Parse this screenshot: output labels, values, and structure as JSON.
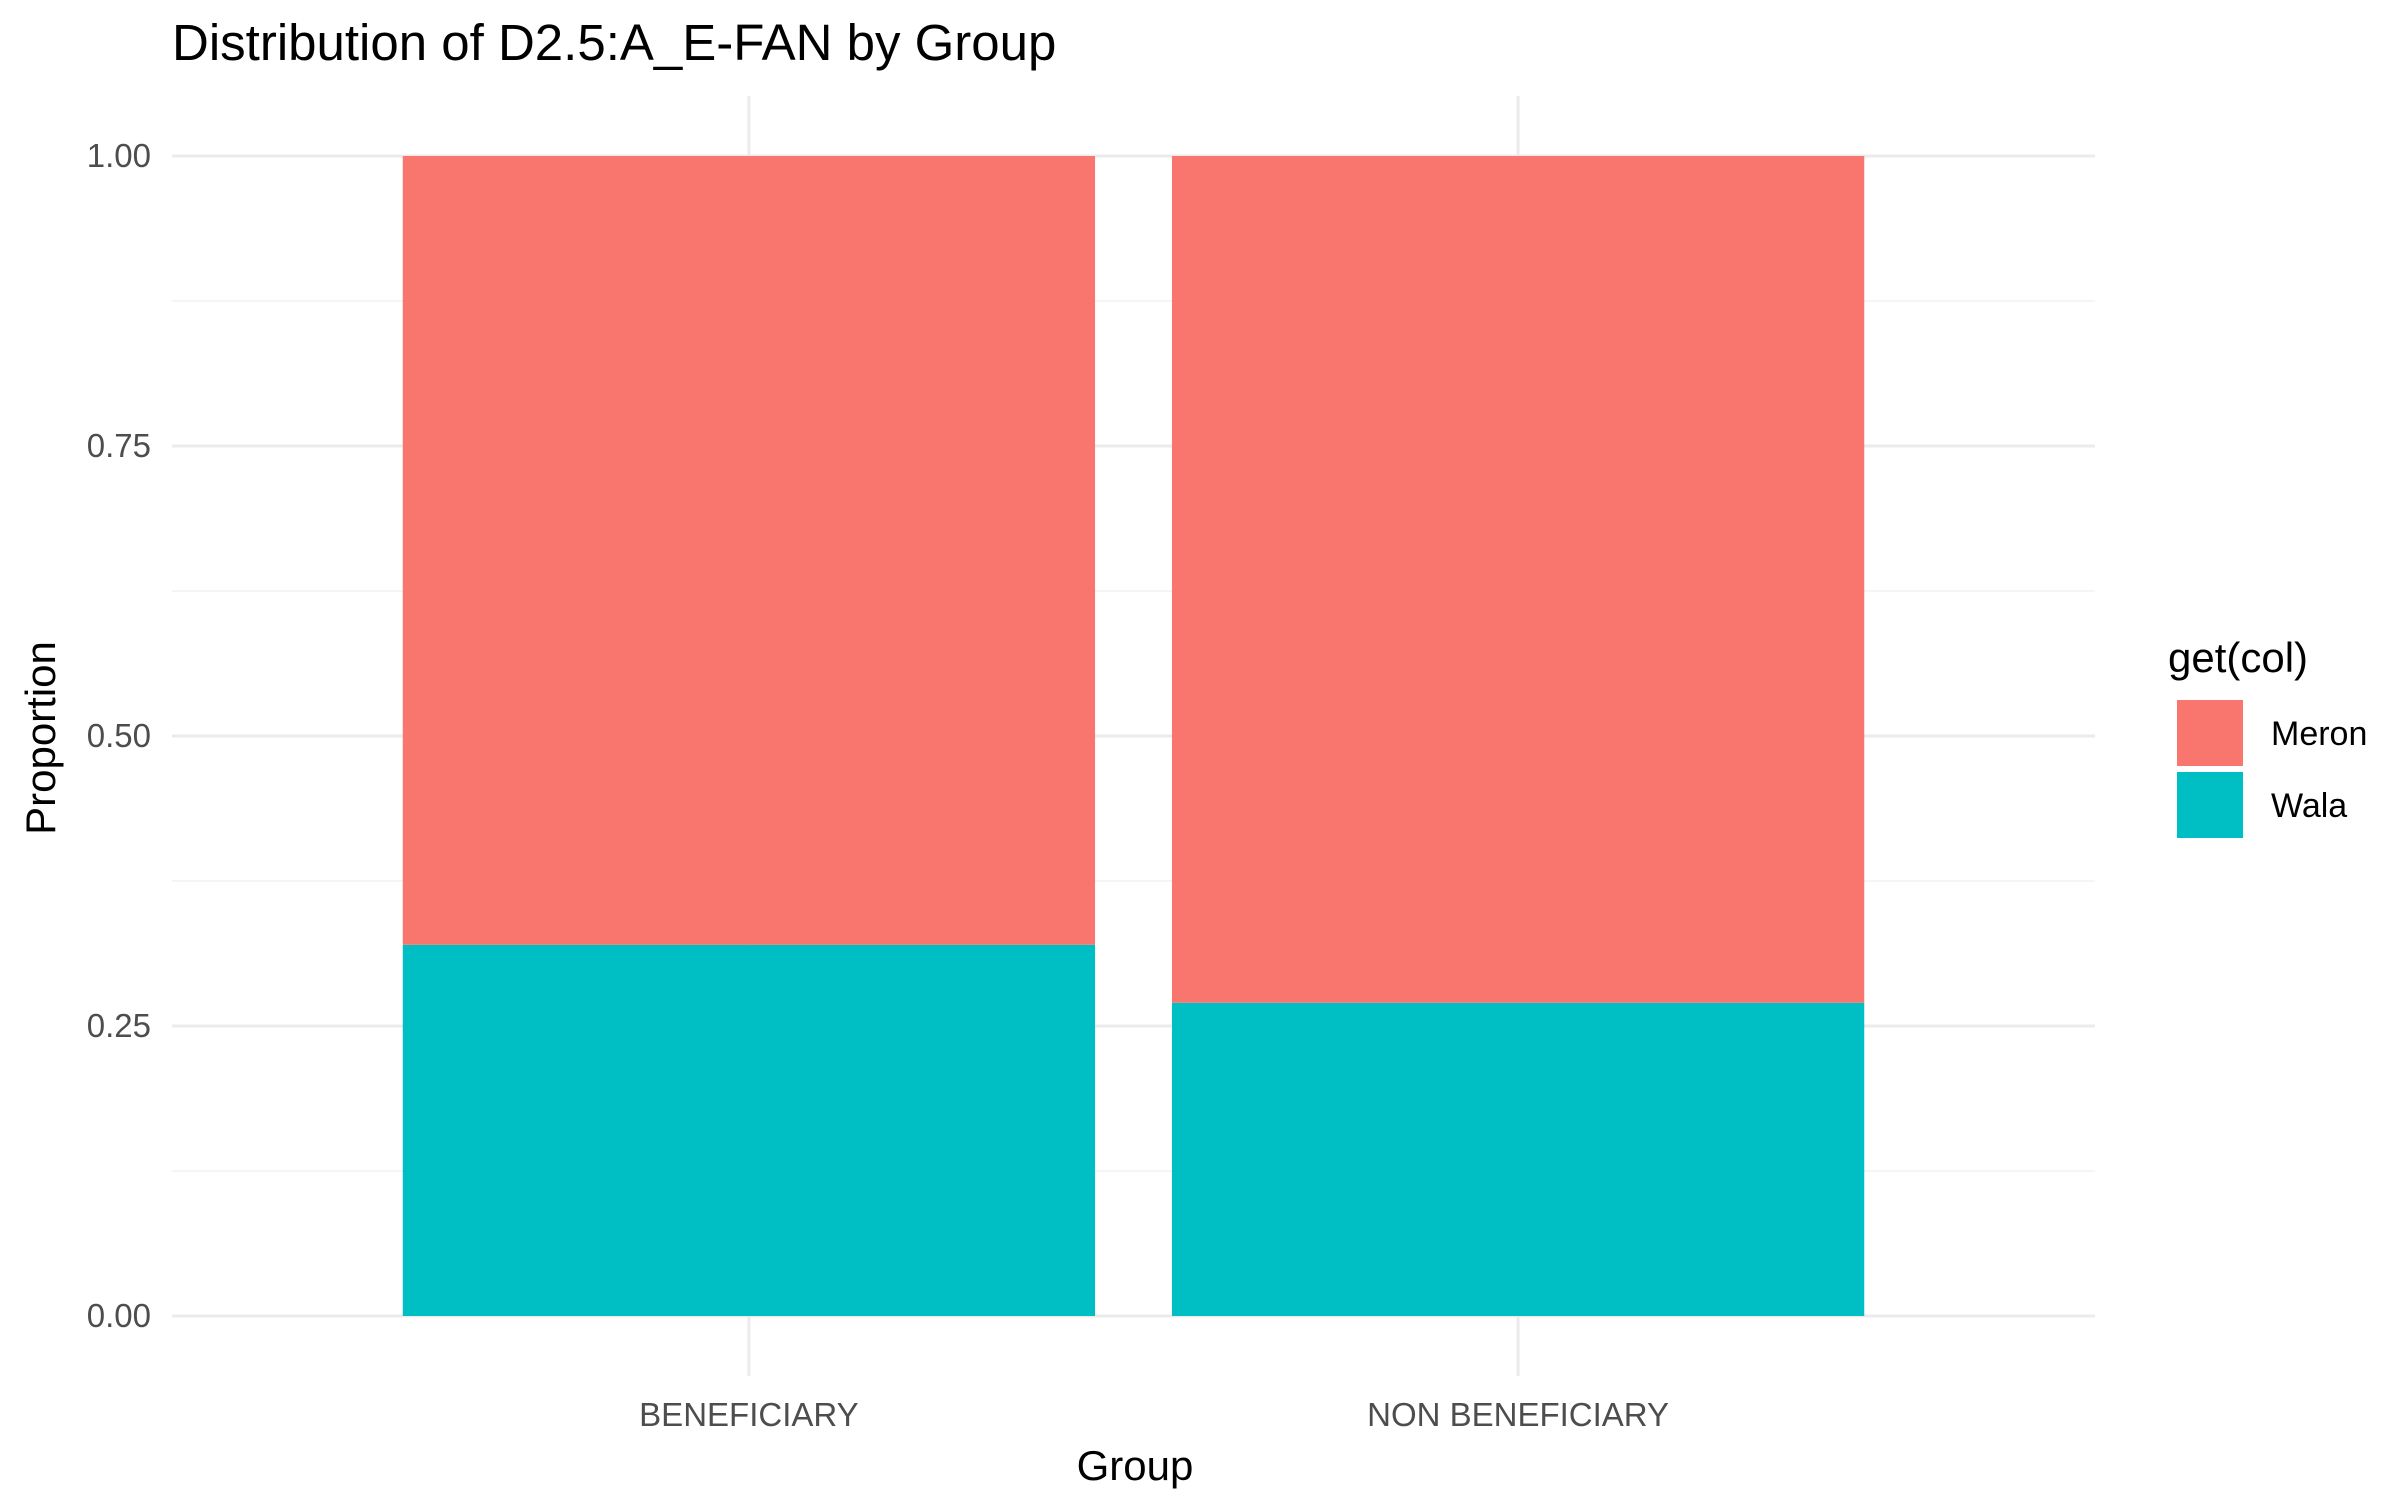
{
  "chart_data": {
    "type": "bar",
    "stacked": true,
    "title": "Distribution of D2.5:A_E-FAN by Group",
    "xlabel": "Group",
    "ylabel": "Proportion",
    "categories": [
      "BENEFICIARY",
      "NON BENEFICIARY"
    ],
    "series": [
      {
        "name": "Meron",
        "color": "#F8766D",
        "values": [
          0.68,
          0.73
        ]
      },
      {
        "name": "Wala",
        "color": "#00BFC4",
        "values": [
          0.32,
          0.27
        ]
      }
    ],
    "ylim": [
      0,
      1
    ],
    "yticks": [
      0,
      0.25,
      0.5,
      0.75,
      1
    ],
    "ytick_labels": [
      "0.00",
      "0.25",
      "0.50",
      "0.75",
      "1.00"
    ],
    "grid": true,
    "legend": {
      "title": "get(col)",
      "position": "right",
      "entries": [
        "Meron",
        "Wala"
      ]
    }
  }
}
